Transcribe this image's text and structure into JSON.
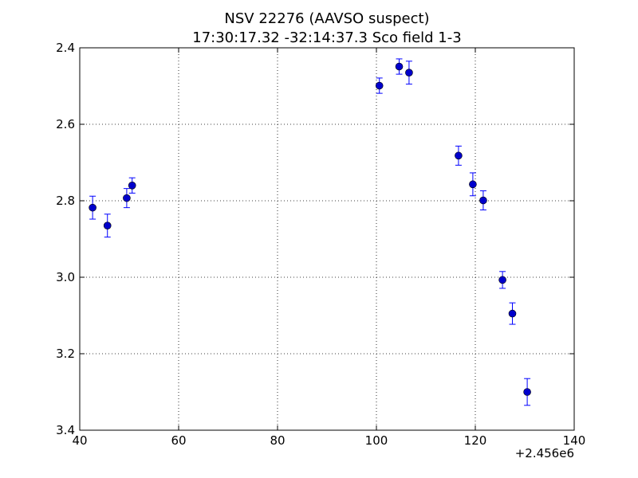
{
  "chart_data": {
    "type": "scatter",
    "title": "NSV 22276  (AAVSO suspect)",
    "subtitle": "17:30:17.32 -32:14:37.3 Sco field 1-3",
    "xlabel": "",
    "ylabel": "",
    "x_offset_label": "+2.456e6",
    "xlim": [
      40,
      140
    ],
    "ylim": [
      2.4,
      3.4
    ],
    "y_inverted": true,
    "grid": true,
    "legend": "none",
    "x_ticks": [
      40,
      60,
      80,
      100,
      120,
      140
    ],
    "x_tick_labels": [
      "40",
      "60",
      "80",
      "100",
      "120",
      "140"
    ],
    "y_ticks": [
      2.4,
      2.6,
      2.8,
      3.0,
      3.2,
      3.4
    ],
    "y_tick_labels": [
      "2.4",
      "2.6",
      "2.8",
      "3.0",
      "3.2",
      "3.4"
    ],
    "marker_color": "#0000cc",
    "errorbar_color": "#0000ff",
    "series": [
      {
        "points": [
          {
            "x": 42.6,
            "y": 2.818,
            "err": 0.03
          },
          {
            "x": 45.6,
            "y": 2.865,
            "err": 0.03
          },
          {
            "x": 49.5,
            "y": 2.793,
            "err": 0.025
          },
          {
            "x": 50.6,
            "y": 2.76,
            "err": 0.02
          },
          {
            "x": 100.6,
            "y": 2.499,
            "err": 0.02
          },
          {
            "x": 104.6,
            "y": 2.449,
            "err": 0.02
          },
          {
            "x": 106.6,
            "y": 2.465,
            "err": 0.03
          },
          {
            "x": 116.6,
            "y": 2.682,
            "err": 0.025
          },
          {
            "x": 119.5,
            "y": 2.757,
            "err": 0.03
          },
          {
            "x": 121.6,
            "y": 2.799,
            "err": 0.025
          },
          {
            "x": 125.5,
            "y": 3.007,
            "err": 0.022
          },
          {
            "x": 127.5,
            "y": 3.095,
            "err": 0.028
          },
          {
            "x": 130.5,
            "y": 3.3,
            "err": 0.035
          }
        ]
      }
    ]
  }
}
